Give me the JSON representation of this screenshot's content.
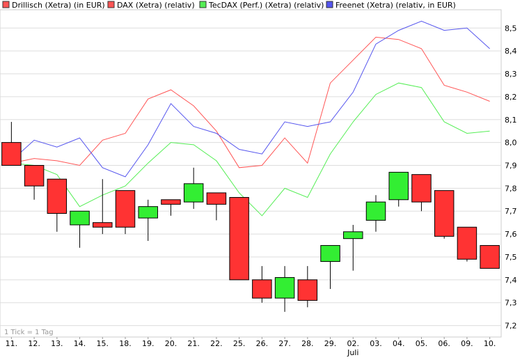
{
  "chart_data": {
    "type": "candlestick",
    "legend": [
      {
        "name": "Drillisch (Xetra) (in EUR)",
        "color": "#ff5555"
      },
      {
        "name": "DAX (Xetra) (relativ)",
        "color": "#ff5555"
      },
      {
        "name": "TecDAX (Perf.) (Xetra) (relativ)",
        "color": "#55ee55"
      },
      {
        "name": "Freenet (Xetra) (relativ, in EUR)",
        "color": "#5555ee"
      }
    ],
    "note": "1 Tick = 1 Tag",
    "x_labels": [
      "11.",
      "12.",
      "13.",
      "14.",
      "15.",
      "18.",
      "19.",
      "20.",
      "21.",
      "22.",
      "25.",
      "26.",
      "27.",
      "28.",
      "29.",
      "02.",
      "03.",
      "04.",
      "05.",
      "06.",
      "09.",
      "10."
    ],
    "x_sublabel": {
      "index": 15,
      "text": "Juli"
    },
    "y_ticks": [
      "7,2",
      "7,3",
      "7,4",
      "7,5",
      "7,6",
      "7,7",
      "7,8",
      "7,9",
      "8,0",
      "8,1",
      "8,2",
      "8,3",
      "8,4",
      "8,5"
    ],
    "ylim": [
      7.15,
      8.58
    ],
    "candles": [
      {
        "open": 8.0,
        "close": 7.9,
        "high": 8.09,
        "low": 7.9
      },
      {
        "open": 7.9,
        "close": 7.81,
        "high": 7.9,
        "low": 7.75
      },
      {
        "open": 7.84,
        "close": 7.69,
        "high": 7.84,
        "low": 7.61
      },
      {
        "open": 7.64,
        "close": 7.7,
        "high": 7.7,
        "low": 7.54
      },
      {
        "open": 7.65,
        "close": 7.63,
        "high": 7.84,
        "low": 7.6
      },
      {
        "open": 7.79,
        "close": 7.63,
        "high": 7.79,
        "low": 7.6
      },
      {
        "open": 7.67,
        "close": 7.72,
        "high": 7.75,
        "low": 7.57
      },
      {
        "open": 7.75,
        "close": 7.73,
        "high": 7.75,
        "low": 7.68
      },
      {
        "open": 7.74,
        "close": 7.82,
        "high": 7.89,
        "low": 7.71
      },
      {
        "open": 7.78,
        "close": 7.73,
        "high": 7.78,
        "low": 7.66
      },
      {
        "open": 7.76,
        "close": 7.4,
        "high": 7.76,
        "low": 7.4
      },
      {
        "open": 7.4,
        "close": 7.32,
        "high": 7.46,
        "low": 7.3
      },
      {
        "open": 7.32,
        "close": 7.41,
        "high": 7.46,
        "low": 7.26
      },
      {
        "open": 7.4,
        "close": 7.31,
        "high": 7.46,
        "low": 7.28
      },
      {
        "open": 7.48,
        "close": 7.55,
        "high": 7.55,
        "low": 7.36
      },
      {
        "open": 7.58,
        "close": 7.61,
        "high": 7.64,
        "low": 7.44
      },
      {
        "open": 7.66,
        "close": 7.74,
        "high": 7.77,
        "low": 7.61
      },
      {
        "open": 7.75,
        "close": 7.87,
        "high": 7.87,
        "low": 7.72
      },
      {
        "open": 7.86,
        "close": 7.74,
        "high": 7.86,
        "low": 7.7
      },
      {
        "open": 7.79,
        "close": 7.59,
        "high": 7.79,
        "low": 7.58
      },
      {
        "open": 7.63,
        "close": 7.49,
        "high": 7.63,
        "low": 7.48
      },
      {
        "open": 7.55,
        "close": 7.45,
        "high": 7.55,
        "low": 7.45
      }
    ],
    "series": [
      {
        "name": "DAX (Xetra) (relativ)",
        "color": "#ff5555",
        "values": [
          7.91,
          7.93,
          7.92,
          7.9,
          8.01,
          8.04,
          8.19,
          8.23,
          8.16,
          8.05,
          7.89,
          7.9,
          8.02,
          7.91,
          8.26,
          8.36,
          8.46,
          8.45,
          8.41,
          8.25,
          8.22,
          8.18
        ]
      },
      {
        "name": "TecDAX (Perf.) (Xetra) (relativ)",
        "color": "#55ee55",
        "values": [
          7.91,
          7.9,
          7.86,
          7.72,
          7.77,
          7.81,
          7.91,
          8.0,
          7.99,
          7.92,
          7.78,
          7.68,
          7.8,
          7.76,
          7.95,
          8.09,
          8.21,
          8.26,
          8.24,
          8.09,
          8.04,
          8.05
        ]
      },
      {
        "name": "Freenet (Xetra) (relativ, in EUR)",
        "color": "#5555ee",
        "values": [
          7.92,
          8.01,
          7.98,
          8.02,
          7.89,
          7.85,
          7.99,
          8.17,
          8.07,
          8.04,
          7.97,
          7.95,
          8.09,
          8.07,
          8.09,
          8.22,
          8.43,
          8.49,
          8.53,
          8.49,
          8.5,
          8.41
        ]
      }
    ],
    "colors": {
      "up": "#33ee33",
      "down": "#ff3333",
      "grid": "#dddddd",
      "frame": "#cccccc"
    }
  }
}
